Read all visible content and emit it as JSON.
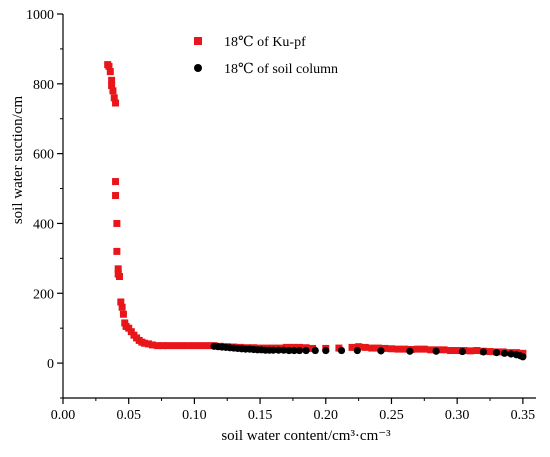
{
  "chart_data": {
    "type": "scatter",
    "xlabel": "soil water content/cm³·cm⁻³",
    "ylabel": "soil water suction/cm",
    "xlim": [
      0.0,
      0.36
    ],
    "ylim": [
      -100,
      1000
    ],
    "x_ticks": [
      "0.00",
      "0.05",
      "0.10",
      "0.15",
      "0.20",
      "0.25",
      "0.30",
      "0.35"
    ],
    "y_ticks": [
      "0",
      "200",
      "400",
      "600",
      "800",
      "1000"
    ],
    "legend_position": "top-center",
    "grid": false,
    "series": [
      {
        "name": "18℃ of Ku-pf",
        "color": "#e8161b",
        "marker": "square",
        "points": [
          [
            0.034,
            855
          ],
          [
            0.035,
            850
          ],
          [
            0.036,
            835
          ],
          [
            0.037,
            810
          ],
          [
            0.037,
            795
          ],
          [
            0.038,
            780
          ],
          [
            0.039,
            760
          ],
          [
            0.04,
            745
          ],
          [
            0.04,
            520
          ],
          [
            0.04,
            480
          ],
          [
            0.041,
            400
          ],
          [
            0.041,
            320
          ],
          [
            0.042,
            270
          ],
          [
            0.042,
            255
          ],
          [
            0.043,
            248
          ],
          [
            0.044,
            175
          ],
          [
            0.045,
            160
          ],
          [
            0.046,
            140
          ],
          [
            0.047,
            115
          ],
          [
            0.048,
            105
          ],
          [
            0.05,
            100
          ],
          [
            0.052,
            90
          ],
          [
            0.054,
            80
          ],
          [
            0.056,
            72
          ],
          [
            0.058,
            65
          ],
          [
            0.06,
            60
          ],
          [
            0.062,
            57
          ],
          [
            0.065,
            55
          ],
          [
            0.068,
            52
          ],
          [
            0.072,
            50
          ],
          [
            0.076,
            50
          ],
          [
            0.08,
            50
          ],
          [
            0.085,
            50
          ],
          [
            0.09,
            50
          ],
          [
            0.095,
            50
          ],
          [
            0.1,
            50
          ],
          [
            0.105,
            50
          ],
          [
            0.11,
            50
          ],
          [
            0.115,
            50
          ],
          [
            0.12,
            48
          ],
          [
            0.125,
            47
          ],
          [
            0.13,
            46
          ],
          [
            0.135,
            45
          ],
          [
            0.14,
            44
          ],
          [
            0.145,
            44
          ],
          [
            0.15,
            43
          ],
          [
            0.155,
            43
          ],
          [
            0.16,
            43
          ],
          [
            0.165,
            43
          ],
          [
            0.17,
            45
          ],
          [
            0.175,
            45
          ],
          [
            0.18,
            45
          ],
          [
            0.185,
            44
          ],
          [
            0.19,
            42
          ],
          [
            0.2,
            42
          ],
          [
            0.21,
            43
          ],
          [
            0.22,
            45
          ],
          [
            0.225,
            47
          ],
          [
            0.23,
            45
          ],
          [
            0.235,
            43
          ],
          [
            0.24,
            43
          ],
          [
            0.245,
            42
          ],
          [
            0.25,
            41
          ],
          [
            0.255,
            40
          ],
          [
            0.26,
            40
          ],
          [
            0.265,
            39
          ],
          [
            0.27,
            40
          ],
          [
            0.275,
            40
          ],
          [
            0.28,
            38
          ],
          [
            0.285,
            38
          ],
          [
            0.29,
            38
          ],
          [
            0.295,
            36
          ],
          [
            0.3,
            36
          ],
          [
            0.305,
            36
          ],
          [
            0.31,
            35
          ],
          [
            0.315,
            36
          ],
          [
            0.32,
            34
          ],
          [
            0.325,
            33
          ],
          [
            0.33,
            32
          ],
          [
            0.335,
            32
          ],
          [
            0.34,
            30
          ],
          [
            0.345,
            30
          ],
          [
            0.35,
            28
          ]
        ]
      },
      {
        "name": "18℃ of soil column",
        "color": "#000000",
        "marker": "circle",
        "points": [
          [
            0.115,
            48
          ],
          [
            0.118,
            47
          ],
          [
            0.121,
            46
          ],
          [
            0.124,
            45
          ],
          [
            0.127,
            44
          ],
          [
            0.13,
            43
          ],
          [
            0.133,
            42
          ],
          [
            0.136,
            41
          ],
          [
            0.139,
            40
          ],
          [
            0.142,
            40
          ],
          [
            0.145,
            39
          ],
          [
            0.148,
            38
          ],
          [
            0.151,
            38
          ],
          [
            0.154,
            37
          ],
          [
            0.157,
            37
          ],
          [
            0.16,
            37
          ],
          [
            0.164,
            37
          ],
          [
            0.168,
            37
          ],
          [
            0.172,
            36
          ],
          [
            0.176,
            36
          ],
          [
            0.18,
            36
          ],
          [
            0.185,
            36
          ],
          [
            0.192,
            36
          ],
          [
            0.2,
            36
          ],
          [
            0.212,
            36
          ],
          [
            0.224,
            36
          ],
          [
            0.242,
            35
          ],
          [
            0.264,
            34
          ],
          [
            0.284,
            34
          ],
          [
            0.304,
            33
          ],
          [
            0.32,
            32
          ],
          [
            0.33,
            30
          ],
          [
            0.336,
            28
          ],
          [
            0.341,
            26
          ],
          [
            0.345,
            24
          ],
          [
            0.348,
            21
          ],
          [
            0.35,
            18
          ]
        ]
      }
    ]
  }
}
